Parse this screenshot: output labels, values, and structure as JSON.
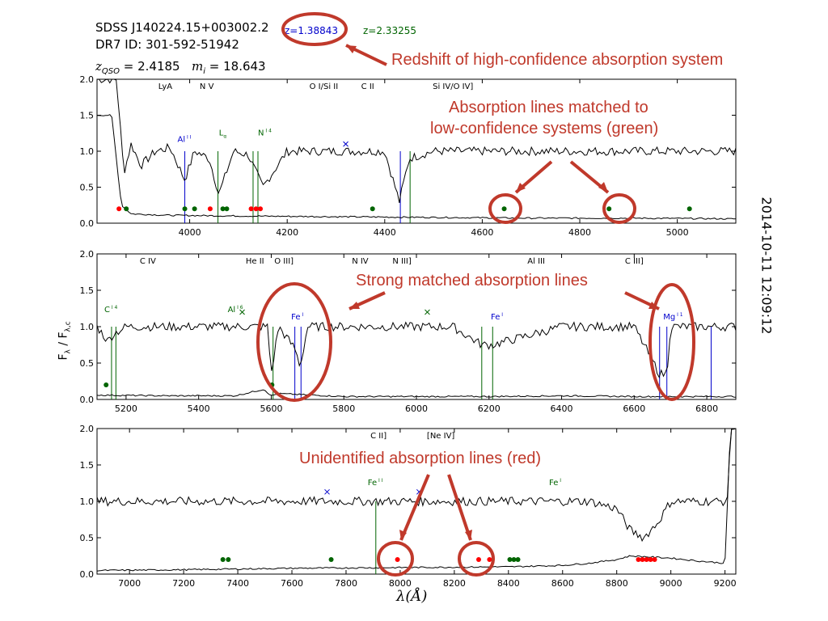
{
  "header": {
    "object": "SDSS J140224.15+003002.2",
    "dr7_id": "DR7 ID: 301-592-51942",
    "z_high": "z=1.38843",
    "z_low": "z=2.33255",
    "zqso_label": "z",
    "zqso_sub": "QSO",
    "zqso_value": " = 2.4185",
    "mag_label": "m",
    "mag_sub": "i",
    "mag_value": " = 18.643"
  },
  "timestamp": "2014-10-11 12:09:12",
  "annotations": [
    "Redshift of high-confidence absorption system",
    "Absorption lines matched to",
    "low-confidence systems (green)",
    "Strong matched absorption lines",
    "Unidentified absorption lines (red)"
  ],
  "colors": {
    "spectrum": "#000000",
    "high_conf": "#0000cc",
    "low_conf": "#006400",
    "unidentified": "#ff0000",
    "annotation": "#c0392b"
  },
  "chart_data": [
    {
      "type": "line",
      "panel": "top",
      "xlim": [
        3810,
        5120
      ],
      "ylim": [
        0,
        2
      ],
      "xticks": [
        4000,
        4200,
        4400,
        4600,
        4800,
        5000
      ],
      "yticks": [
        0.0,
        0.5,
        1.0,
        1.5,
        2.0
      ],
      "top_labels": [
        {
          "x": 3950,
          "text": "LyA"
        },
        {
          "x": 4035,
          "text": "N V"
        },
        {
          "x": 4275,
          "text": "O I/Si II"
        },
        {
          "x": 4365,
          "text": "C II"
        },
        {
          "x": 4540,
          "text": "Si IV/O IV]"
        }
      ],
      "line_labels": [
        {
          "x": 3975,
          "y": 1.13,
          "text": "Al",
          "sup": "I I",
          "color": "#0000cc"
        },
        {
          "x": 4060,
          "y": 1.22,
          "text": "L",
          "sub": "α",
          "color": "#006400"
        },
        {
          "x": 4140,
          "y": 1.22,
          "text": "N",
          "sup": "I 4",
          "color": "#006400"
        }
      ],
      "series": [
        {
          "name": "flux",
          "x": [
            3850,
            3865,
            3880,
            3900,
            3930,
            3960,
            3990,
            4010,
            4040,
            4060,
            4090,
            4120,
            4150,
            4200,
            4300,
            4400,
            4430,
            4450,
            4500,
            4600,
            4700,
            4800,
            4900,
            5000,
            5120
          ],
          "y": [
            2.0,
            0.7,
            1.1,
            0.8,
            1.0,
            1.05,
            0.6,
            1.0,
            0.9,
            0.4,
            1.0,
            0.95,
            0.5,
            1.0,
            1.0,
            1.0,
            0.3,
            0.9,
            1.0,
            1.0,
            1.0,
            1.0,
            1.0,
            1.0,
            1.0
          ]
        },
        {
          "name": "error",
          "x": [
            3840,
            3860,
            3880,
            3950,
            4100,
            4300,
            4500,
            4700,
            4900,
            5120
          ],
          "y": [
            1.5,
            0.25,
            0.13,
            0.11,
            0.1,
            0.09,
            0.08,
            0.07,
            0.07,
            0.06
          ]
        }
      ],
      "absorbers": [
        {
          "x": 3990,
          "color": "#0000cc"
        },
        {
          "x": 4058,
          "color": "#006400"
        },
        {
          "x": 4130,
          "color": "#006400"
        },
        {
          "x": 4140,
          "color": "#006400"
        },
        {
          "x": 4432,
          "color": "#0000cc"
        },
        {
          "x": 4452,
          "color": "#006400"
        }
      ],
      "dots": [
        {
          "x": 3855,
          "y": 0.2,
          "color": "#ff0000"
        },
        {
          "x": 3870,
          "y": 0.2,
          "color": "#006400"
        },
        {
          "x": 3990,
          "y": 0.2,
          "color": "#006400"
        },
        {
          "x": 4010,
          "y": 0.2,
          "color": "#006400"
        },
        {
          "x": 4042,
          "y": 0.2,
          "color": "#ff0000"
        },
        {
          "x": 4068,
          "y": 0.2,
          "color": "#006400"
        },
        {
          "x": 4076,
          "y": 0.2,
          "color": "#006400"
        },
        {
          "x": 4126,
          "y": 0.2,
          "color": "#ff0000"
        },
        {
          "x": 4136,
          "y": 0.2,
          "color": "#ff0000"
        },
        {
          "x": 4145,
          "y": 0.2,
          "color": "#ff0000"
        },
        {
          "x": 4375,
          "y": 0.2,
          "color": "#006400"
        },
        {
          "x": 4645,
          "y": 0.2,
          "color": "#006400"
        },
        {
          "x": 4860,
          "y": 0.2,
          "color": "#006400"
        },
        {
          "x": 5025,
          "y": 0.2,
          "color": "#006400"
        }
      ],
      "crosses": [
        {
          "x": 4320,
          "y": 1.1,
          "color": "#0000cc"
        }
      ]
    },
    {
      "type": "line",
      "panel": "middle",
      "xlim": [
        5120,
        6880
      ],
      "ylim": [
        0,
        2
      ],
      "xticks": [
        5200,
        5400,
        5600,
        5800,
        6000,
        6200,
        6400,
        6600,
        6800
      ],
      "yticks": [
        0.0,
        0.5,
        1.0,
        1.5,
        2.0
      ],
      "ylabel": "F",
      "top_labels": [
        {
          "x": 5260,
          "text": "C IV"
        },
        {
          "x": 5555,
          "text": "He II"
        },
        {
          "x": 5635,
          "text": "O III]"
        },
        {
          "x": 5845,
          "text": "N IV"
        },
        {
          "x": 5960,
          "text": "N III]"
        },
        {
          "x": 6330,
          "text": "Al III"
        },
        {
          "x": 6600,
          "text": "C III]"
        }
      ],
      "line_labels": [
        {
          "x": 5140,
          "y": 1.2,
          "text": "C",
          "sup": "I 4",
          "color": "#006400"
        },
        {
          "x": 5480,
          "y": 1.2,
          "text": "Al",
          "sup": "I 6",
          "color": "#006400"
        },
        {
          "x": 5655,
          "y": 1.1,
          "text": "Fe",
          "sup": "I",
          "color": "#0000cc"
        },
        {
          "x": 6205,
          "y": 1.1,
          "text": "Fe",
          "sup": "I",
          "color": "#0000cc"
        },
        {
          "x": 6680,
          "y": 1.1,
          "text": "Mg",
          "sup": "I 1",
          "color": "#0000cc"
        }
      ],
      "series": [
        {
          "name": "flux",
          "x": [
            5120,
            5150,
            5165,
            5200,
            5400,
            5590,
            5600,
            5620,
            5665,
            5680,
            5700,
            5900,
            6100,
            6180,
            6210,
            6400,
            6600,
            6670,
            6690,
            6700,
            6800,
            6880
          ],
          "y": [
            1.0,
            0.8,
            0.9,
            1.0,
            1.0,
            1.0,
            0.35,
            1.0,
            0.7,
            0.45,
            1.0,
            1.0,
            1.0,
            0.75,
            0.75,
            1.0,
            1.0,
            0.35,
            0.35,
            1.0,
            1.0,
            1.0
          ]
        },
        {
          "name": "error",
          "x": [
            5120,
            5300,
            5500,
            5580,
            5600,
            5620,
            5800,
            6000,
            6200,
            6400,
            6600,
            6880
          ],
          "y": [
            0.06,
            0.05,
            0.05,
            0.14,
            0.05,
            0.08,
            0.04,
            0.04,
            0.04,
            0.05,
            0.04,
            0.04
          ]
        }
      ],
      "absorbers": [
        {
          "x": 5160,
          "color": "#006400"
        },
        {
          "x": 5172,
          "color": "#006400"
        },
        {
          "x": 5605,
          "color": "#006400"
        },
        {
          "x": 5665,
          "color": "#0000cc"
        },
        {
          "x": 5682,
          "color": "#0000cc"
        },
        {
          "x": 6180,
          "color": "#006400"
        },
        {
          "x": 6210,
          "color": "#006400"
        },
        {
          "x": 6670,
          "color": "#0000cc"
        },
        {
          "x": 6690,
          "color": "#0000cc"
        },
        {
          "x": 6812,
          "color": "#0000cc"
        }
      ],
      "dots": [
        {
          "x": 5145,
          "y": 0.2,
          "color": "#006400"
        },
        {
          "x": 5602,
          "y": 0.2,
          "color": "#006400"
        }
      ],
      "crosses": [
        {
          "x": 5520,
          "y": 1.2,
          "color": "#006400"
        },
        {
          "x": 6030,
          "y": 1.2,
          "color": "#006400"
        }
      ]
    },
    {
      "type": "line",
      "panel": "bottom",
      "xlim": [
        6880,
        9240
      ],
      "ylim": [
        0,
        2
      ],
      "xticks": [
        7000,
        7200,
        7400,
        7600,
        7800,
        8000,
        8200,
        8400,
        8600,
        8800,
        9000,
        9200
      ],
      "yticks": [
        0.0,
        0.5,
        1.0,
        1.5,
        2.0
      ],
      "xlabel": "λ(Å)",
      "top_labels": [
        {
          "x": 7920,
          "text": "C II]"
        },
        {
          "x": 8150,
          "text": "[Ne IV]"
        }
      ],
      "line_labels": [
        {
          "x": 7880,
          "y": 1.22,
          "text": "Fe",
          "sup": "I I",
          "color": "#006400"
        },
        {
          "x": 8550,
          "y": 1.22,
          "text": "Fe",
          "sup": "I",
          "color": "#006400"
        }
      ],
      "series": [
        {
          "name": "flux",
          "x": [
            6880,
            7000,
            7200,
            7400,
            7600,
            7800,
            7900,
            8000,
            8200,
            8400,
            8600,
            8700,
            8800,
            8850,
            8900,
            8950,
            9000,
            9100,
            9200,
            9210,
            9220,
            9240
          ],
          "y": [
            1.0,
            1.0,
            1.0,
            1.0,
            1.0,
            1.0,
            1.0,
            1.0,
            1.0,
            1.0,
            1.0,
            1.0,
            0.9,
            0.6,
            0.5,
            0.7,
            1.0,
            1.0,
            1.0,
            1.0,
            2.0,
            2.0
          ]
        },
        {
          "name": "error",
          "x": [
            6880,
            7200,
            7600,
            8000,
            8400,
            8600,
            8700,
            8800,
            8850,
            9000,
            9100,
            9200,
            9220,
            9240
          ],
          "y": [
            0.05,
            0.06,
            0.08,
            0.09,
            0.1,
            0.12,
            0.15,
            0.2,
            0.25,
            0.22,
            0.18,
            0.15,
            2.0,
            2.0
          ]
        }
      ],
      "absorbers": [
        {
          "x": 7910,
          "color": "#006400"
        }
      ],
      "dots": [
        {
          "x": 7345,
          "y": 0.2,
          "color": "#006400"
        },
        {
          "x": 7365,
          "y": 0.2,
          "color": "#006400"
        },
        {
          "x": 7745,
          "y": 0.2,
          "color": "#006400"
        },
        {
          "x": 7990,
          "y": 0.2,
          "color": "#ff0000"
        },
        {
          "x": 8290,
          "y": 0.2,
          "color": "#ff0000"
        },
        {
          "x": 8330,
          "y": 0.2,
          "color": "#ff0000"
        },
        {
          "x": 8405,
          "y": 0.2,
          "color": "#006400"
        },
        {
          "x": 8420,
          "y": 0.2,
          "color": "#006400"
        },
        {
          "x": 8435,
          "y": 0.2,
          "color": "#006400"
        },
        {
          "x": 8880,
          "y": 0.2,
          "color": "#ff0000"
        },
        {
          "x": 8895,
          "y": 0.2,
          "color": "#ff0000"
        },
        {
          "x": 8910,
          "y": 0.2,
          "color": "#ff0000"
        },
        {
          "x": 8925,
          "y": 0.2,
          "color": "#ff0000"
        },
        {
          "x": 8940,
          "y": 0.2,
          "color": "#ff0000"
        }
      ],
      "crosses": [
        {
          "x": 7730,
          "y": 1.13,
          "color": "#0000cc"
        },
        {
          "x": 8070,
          "y": 1.13,
          "color": "#0000cc"
        }
      ]
    }
  ]
}
